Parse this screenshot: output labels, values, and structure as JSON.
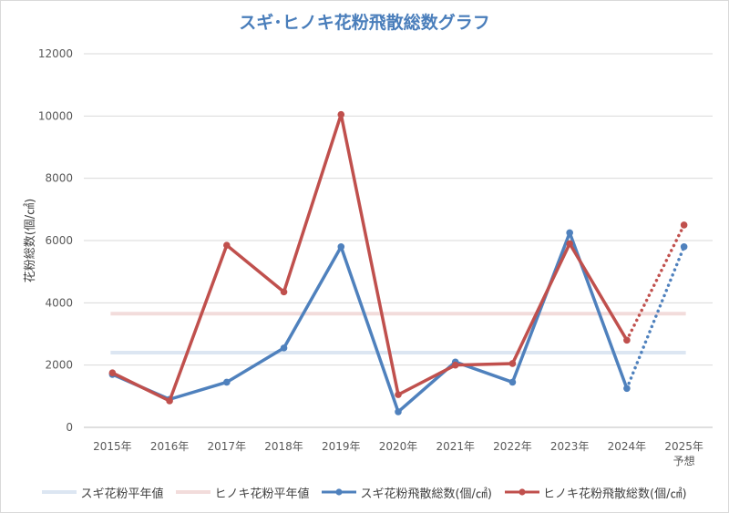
{
  "chart_data": {
    "type": "line",
    "title": "スギ･ヒノキ花粉飛散総数グラフ",
    "xlabel": "",
    "ylabel": "花粉総数(個/㎠)",
    "ylim": [
      0,
      12000
    ],
    "yticks": [
      "0",
      "2000",
      "4000",
      "6000",
      "8000",
      "10000",
      "12000"
    ],
    "categories": [
      "2015年",
      "2016年",
      "2017年",
      "2018年",
      "2019年",
      "2020年",
      "2021年",
      "2022年",
      "2023年",
      "2024年",
      "2025年\n予想"
    ],
    "grid": true,
    "legend_position": "bottom",
    "series": [
      {
        "name": "スギ花粉平年値",
        "kind": "reference",
        "value": 2400,
        "color": "#dce6f2"
      },
      {
        "name": "ヒノキ花粉平年値",
        "kind": "reference",
        "value": 3650,
        "color": "#f2dcdb"
      },
      {
        "name": "スギ花粉飛散総数(個/㎠)",
        "kind": "line",
        "values": [
          1700,
          900,
          1450,
          2550,
          5800,
          500,
          2100,
          1450,
          6250,
          1250,
          5800
        ],
        "forecast_from_index": 9,
        "color": "#4f81bd"
      },
      {
        "name": "ヒノキ花粉飛散総数(個/㎠)",
        "kind": "line",
        "values": [
          1750,
          850,
          5850,
          4350,
          10050,
          1050,
          2000,
          2050,
          5900,
          2800,
          6500
        ],
        "forecast_from_index": 9,
        "color": "#c0504d"
      }
    ]
  }
}
